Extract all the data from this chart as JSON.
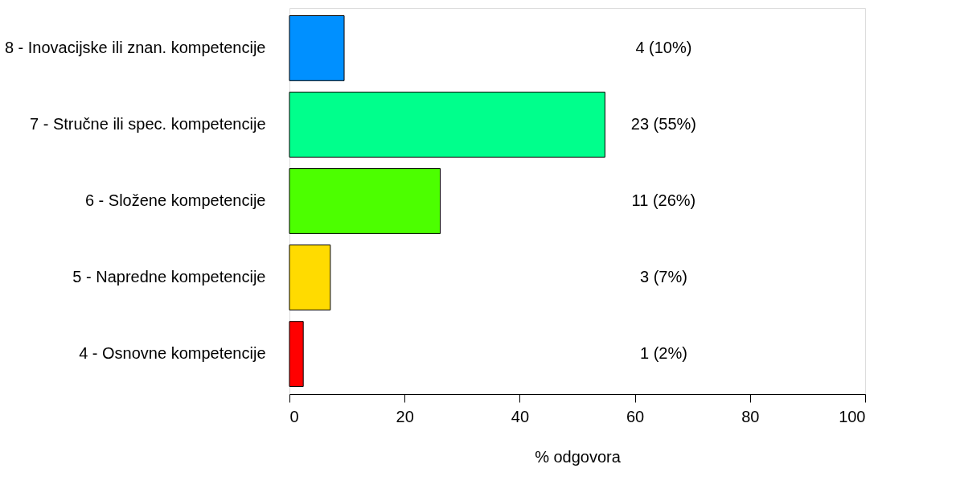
{
  "chart_data": {
    "type": "bar",
    "orientation": "horizontal",
    "xlabel": "% odgovora",
    "categories": [
      "8 - Inovacijske ili znan. kompetencije",
      "7 - Stručne ili spec. kompetencije",
      "6 - Složene kompetencije",
      "5 - Napredne kompetencije",
      "4 - Osnovne kompetencije"
    ],
    "values": [
      9.5,
      54.8,
      26.2,
      7.1,
      2.4
    ],
    "colors": [
      "#0090ff",
      "#00ff8c",
      "#4cff00",
      "#ffdb00",
      "#ff0000"
    ],
    "value_labels": [
      "4 (10%)",
      "23 (55%)",
      "11 (26%)",
      "3 (7%)",
      "1 (2%)"
    ],
    "xlim": [
      0,
      100
    ],
    "xticks": [
      0,
      20,
      40,
      60,
      80,
      100
    ],
    "grid": false,
    "legend": false
  }
}
